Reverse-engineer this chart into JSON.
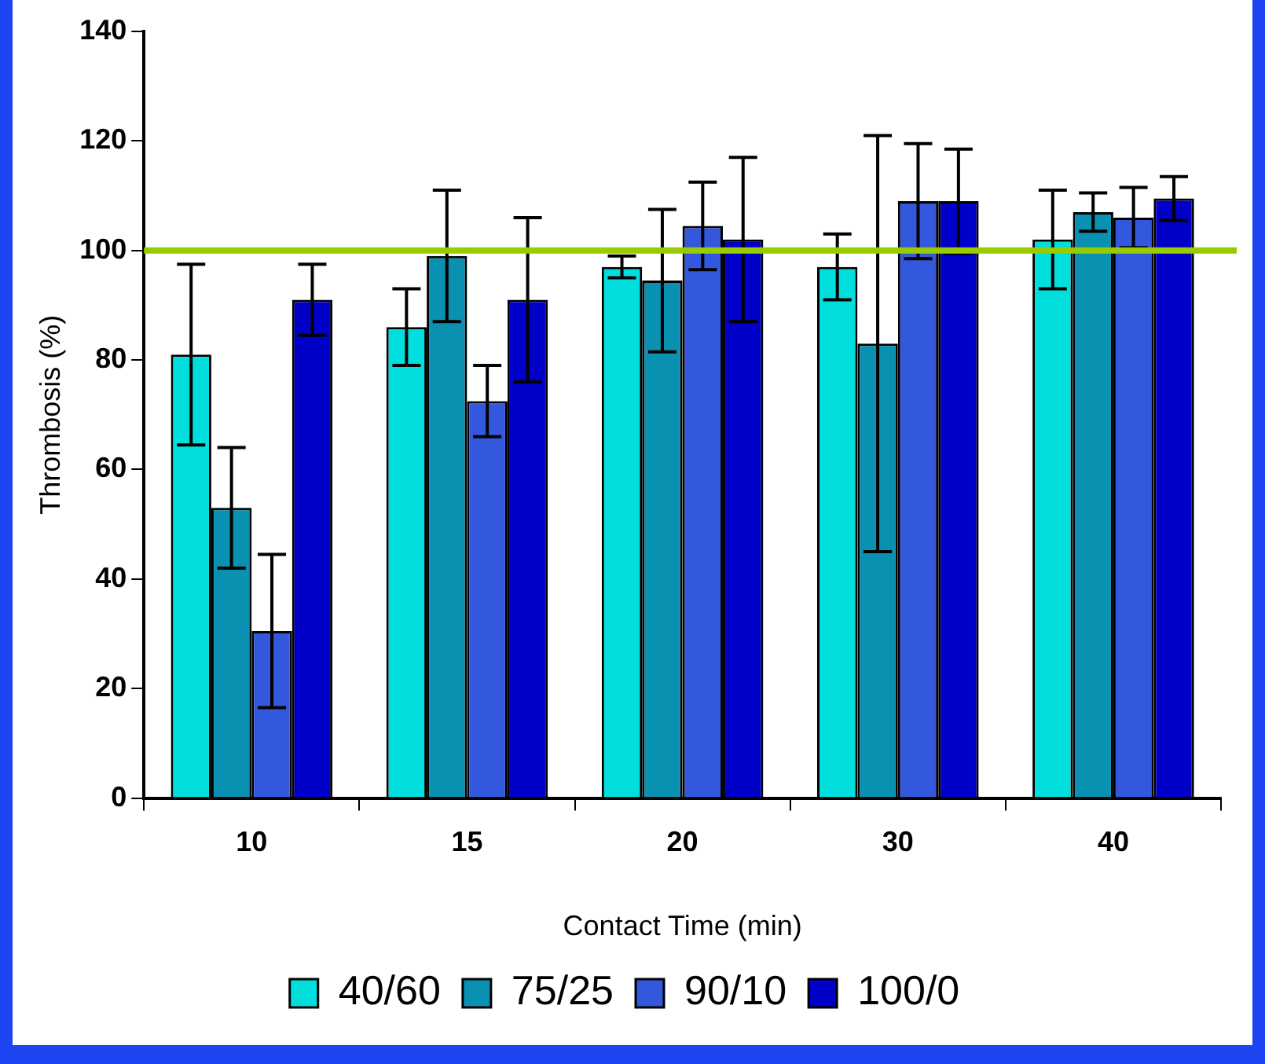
{
  "chart_data": {
    "type": "bar",
    "xlabel": "Contact Time (min)",
    "ylabel": "Thrombosis (%)",
    "categories": [
      "10",
      "15",
      "20",
      "30",
      "40"
    ],
    "series": [
      {
        "name": "40/60",
        "color": "#00dede",
        "values": [
          81,
          86,
          97,
          97,
          102
        ],
        "errors": [
          16.5,
          7,
          2,
          6,
          9
        ]
      },
      {
        "name": "75/25",
        "color": "#0a90b0",
        "values": [
          53,
          99,
          94.5,
          83,
          107
        ],
        "errors": [
          11,
          12,
          13,
          38,
          3.5
        ]
      },
      {
        "name": "90/10",
        "color": "#3358dd",
        "values": [
          30.5,
          72.5,
          104.5,
          109,
          106
        ],
        "errors": [
          14,
          6.5,
          8,
          10.5,
          5.5
        ]
      },
      {
        "name": "100/0",
        "color": "#0000c8",
        "values": [
          91,
          91,
          102,
          109,
          109.5
        ],
        "errors": [
          6.5,
          15,
          15,
          9.5,
          4
        ]
      }
    ],
    "ylim": [
      0,
      140
    ],
    "yticks": [
      0,
      20,
      40,
      60,
      80,
      100,
      120,
      140
    ],
    "ref_lines": [
      {
        "axis": "y",
        "value": 100,
        "color": "#99cc00"
      }
    ],
    "legend": "bottom"
  }
}
